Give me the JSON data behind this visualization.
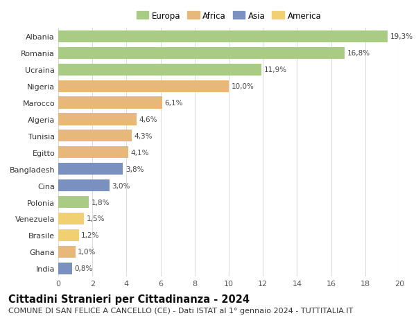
{
  "countries": [
    "Albania",
    "Romania",
    "Ucraina",
    "Nigeria",
    "Marocco",
    "Algeria",
    "Tunisia",
    "Egitto",
    "Bangladesh",
    "Cina",
    "Polonia",
    "Venezuela",
    "Brasile",
    "Ghana",
    "India"
  ],
  "values": [
    19.3,
    16.8,
    11.9,
    10.0,
    6.1,
    4.6,
    4.3,
    4.1,
    3.8,
    3.0,
    1.8,
    1.5,
    1.2,
    1.0,
    0.8
  ],
  "labels": [
    "19,3%",
    "16,8%",
    "11,9%",
    "10,0%",
    "6,1%",
    "4,6%",
    "4,3%",
    "4,1%",
    "3,8%",
    "3,0%",
    "1,8%",
    "1,5%",
    "1,2%",
    "1,0%",
    "0,8%"
  ],
  "continents": [
    "Europa",
    "Europa",
    "Europa",
    "Africa",
    "Africa",
    "Africa",
    "Africa",
    "Africa",
    "Asia",
    "Asia",
    "Europa",
    "America",
    "America",
    "Africa",
    "Asia"
  ],
  "colors": {
    "Europa": "#aacb84",
    "Africa": "#e8b87a",
    "Asia": "#7a90c0",
    "America": "#f0d070"
  },
  "legend_order": [
    "Europa",
    "Africa",
    "Asia",
    "America"
  ],
  "title": "Cittadini Stranieri per Cittadinanza - 2024",
  "subtitle": "COMUNE DI SAN FELICE A CANCELLO (CE) - Dati ISTAT al 1° gennaio 2024 - TUTTITALIA.IT",
  "xlim": [
    0,
    20
  ],
  "xticks": [
    0,
    2,
    4,
    6,
    8,
    10,
    12,
    14,
    16,
    18,
    20
  ],
  "background_color": "#ffffff",
  "grid_color": "#dddddd",
  "bar_height": 0.72,
  "title_fontsize": 10.5,
  "subtitle_fontsize": 8,
  "label_fontsize": 7.5,
  "tick_fontsize": 8,
  "legend_fontsize": 8.5
}
